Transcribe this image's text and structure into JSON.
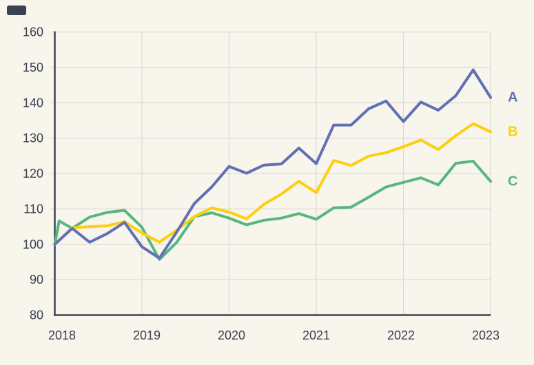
{
  "page": {
    "background_color": "#f7f5ec",
    "text_color": "#3a4252",
    "grid_color": "#dbdad2",
    "spine_color": "#3a4252",
    "corner_bar_color": "#3a4150"
  },
  "chart_data": {
    "type": "line",
    "title": "",
    "grid": true,
    "legend_position": "right-of-line-ends",
    "x_axis": {
      "label": "",
      "range": [
        2018,
        2023
      ],
      "tick_labels": [
        "2018",
        "2019",
        "2020",
        "2021",
        "2022",
        "2023"
      ],
      "tick_years": [
        2018,
        2019,
        2020,
        2021,
        2022,
        2023
      ],
      "gridline_years": [
        2019,
        2020,
        2021,
        2022,
        2023
      ]
    },
    "y_axis": {
      "label": "",
      "range": [
        80,
        160
      ],
      "tick_step": 10,
      "tick_labels": [
        "80",
        "90",
        "100",
        "110",
        "120",
        "130",
        "140",
        "150",
        "160"
      ],
      "tick_values": [
        80,
        90,
        100,
        110,
        120,
        130,
        140,
        150,
        160
      ],
      "gridline_values": [
        90,
        100,
        110,
        120,
        130,
        140,
        150,
        160
      ]
    },
    "series": [
      {
        "name": "A",
        "color": "#6170b4",
        "x": [
          2018.0,
          2018.2,
          2018.4,
          2018.6,
          2018.8,
          2019.0,
          2019.2,
          2019.4,
          2019.6,
          2019.8,
          2020.0,
          2020.2,
          2020.4,
          2020.6,
          2020.8,
          2021.0,
          2021.2,
          2021.4,
          2021.6,
          2021.8,
          2022.0,
          2022.2,
          2022.4,
          2022.6,
          2022.8,
          2023.0
        ],
        "values": [
          100,
          104.5,
          100.6,
          103,
          106.2,
          99.3,
          96.1,
          103.5,
          111.5,
          116.2,
          122.0,
          120.1,
          122.4,
          122.7,
          127.2,
          122.8,
          133.7,
          133.7,
          138.3,
          140.5,
          134.7,
          140.2,
          137.9,
          142.0,
          149.3,
          141.5
        ]
      },
      {
        "name": "B",
        "color": "#fcd00e",
        "x": [
          2018.0,
          2018.2,
          2018.4,
          2018.6,
          2018.8,
          2019.0,
          2019.2,
          2019.4,
          2019.6,
          2019.8,
          2020.0,
          2020.2,
          2020.4,
          2020.6,
          2020.8,
          2021.0,
          2021.2,
          2021.4,
          2021.6,
          2021.8,
          2022.0,
          2022.2,
          2022.4,
          2022.6,
          2022.8,
          2023.0
        ],
        "values": [
          100,
          104.7,
          105.0,
          105.2,
          106.4,
          103.2,
          100.6,
          104.0,
          107.8,
          110.3,
          109.1,
          107.2,
          111.3,
          114.2,
          117.8,
          114.6,
          123.7,
          122.3,
          124.9,
          125.9,
          127.6,
          129.5,
          126.8,
          130.7,
          134.1,
          131.8
        ]
      },
      {
        "name": "C",
        "color": "#57b77f",
        "x": [
          2018.0,
          2018.05,
          2018.2,
          2018.4,
          2018.6,
          2018.8,
          2019.0,
          2019.2,
          2019.4,
          2019.6,
          2019.8,
          2020.0,
          2020.2,
          2020.4,
          2020.6,
          2020.8,
          2021.0,
          2021.2,
          2021.4,
          2021.6,
          2021.8,
          2022.0,
          2022.2,
          2022.4,
          2022.6,
          2022.8,
          2023.0
        ],
        "values": [
          100,
          106.6,
          104.5,
          107.7,
          109.0,
          109.6,
          104.8,
          95.7,
          100.6,
          107.8,
          108.9,
          107.4,
          105.5,
          106.8,
          107.4,
          108.7,
          107.1,
          110.3,
          110.5,
          113.3,
          116.2,
          117.5,
          118.8,
          116.8,
          122.9,
          123.5,
          117.8
        ]
      }
    ]
  }
}
